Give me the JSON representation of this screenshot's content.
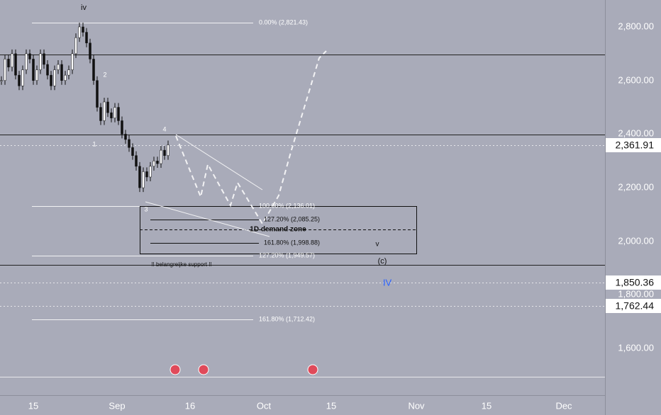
{
  "price_axis": [
    "2,800.00",
    "2,600.00",
    "2,400.00",
    "2,200.00",
    "2,000.00",
    "1,800.00",
    "1,600.00"
  ],
  "price_tags": [
    "2,361.91",
    "1,850.36",
    "1,762.44"
  ],
  "time_axis": [
    "15",
    "Sep",
    "16",
    "Oct",
    "15",
    "Nov",
    "15",
    "Dec"
  ],
  "fib_labels": [
    "0.00% (2,821.43)",
    "100.00% (2,136.01)",
    "127.20% (2,085.25)",
    "161.80% (1,998.88)",
    "127.20% (1,949.57)",
    "161.80% (1,712.42)"
  ],
  "wave_labels": [
    "iv",
    "2",
    "1",
    "4",
    "3",
    "v",
    "(c)",
    "IV"
  ],
  "zone_label": "1D demand zone",
  "support_label": "!! belangreijke support !!",
  "price_path": [
    2600,
    2680,
    2650,
    2700,
    2620,
    2580,
    2640,
    2700,
    2680,
    2600,
    2640,
    2700,
    2660,
    2620,
    2580,
    2640,
    2660,
    2600,
    2620,
    2640,
    2700,
    2760,
    2800,
    2780,
    2740,
    2680,
    2600,
    2500,
    2450,
    2520,
    2480,
    2460,
    2500,
    2450,
    2400,
    2380,
    2350,
    2320,
    2280,
    2200,
    2260,
    2240,
    2280,
    2300,
    2290,
    2340,
    2320,
    2360
  ]
}
